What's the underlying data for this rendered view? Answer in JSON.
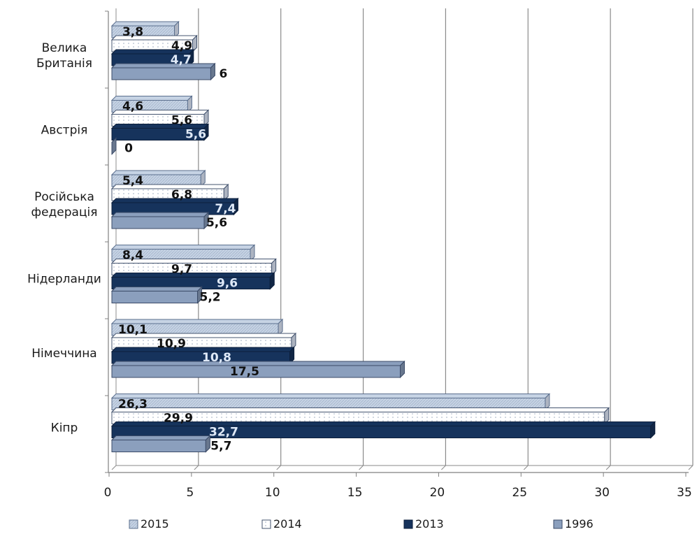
{
  "chart_data": {
    "type": "bar",
    "orientation": "horizontal",
    "three_d": true,
    "categories": [
      "Велика Британія",
      "Австрія",
      "Російська федерація",
      "Нідерланди",
      "Німеччина",
      "Кіпр"
    ],
    "category_lines": [
      [
        "Велика",
        "Британія"
      ],
      [
        "Австрія"
      ],
      [
        "Російська",
        "федерація"
      ],
      [
        "Нідерланди"
      ],
      [
        "Німеччина"
      ],
      [
        "Кіпр"
      ]
    ],
    "series": [
      {
        "name": "2015",
        "values": [
          3.8,
          4.6,
          5.4,
          8.4,
          10.1,
          26.3
        ],
        "labels": [
          "3,8",
          "4,6",
          "5,4",
          "8,4",
          "10,1",
          "26,3"
        ],
        "color": "#c6d3e4",
        "edge": "#5b6f8e",
        "pattern": "hatch",
        "label_color": "#111111"
      },
      {
        "name": "2014",
        "values": [
          4.9,
          5.6,
          6.8,
          9.7,
          10.9,
          29.9
        ],
        "labels": [
          "4,9",
          "5,6",
          "6,8",
          "9,7",
          "10,9",
          "29,9"
        ],
        "color": "#ffffff",
        "edge": "#44546f",
        "pattern": "dots",
        "label_color": "#111111"
      },
      {
        "name": "2013",
        "values": [
          4.7,
          5.6,
          7.4,
          9.6,
          10.8,
          32.7
        ],
        "labels": [
          "4,7",
          "5,6",
          "7,4",
          "9,6",
          "10,8",
          "32,7"
        ],
        "color": "#16335c",
        "edge": "#0c1f3c",
        "pattern": "solid",
        "label_color": "#dfe9f7"
      },
      {
        "name": "1996",
        "values": [
          6,
          0,
          5.6,
          5.2,
          17.5,
          5.7
        ],
        "labels": [
          "6",
          "0",
          "5,6",
          "5,2",
          "17,5",
          "5,7"
        ],
        "color": "#8b9fbd",
        "edge": "#3b4b68",
        "pattern": "solid",
        "label_color": "#111111"
      }
    ],
    "x_ticks": [
      "0",
      "5",
      "10",
      "15",
      "20",
      "25",
      "30",
      "35"
    ],
    "xlim": [
      0,
      35
    ],
    "grid": true,
    "legend_position": "bottom",
    "title": "",
    "xlabel": "",
    "ylabel": ""
  }
}
